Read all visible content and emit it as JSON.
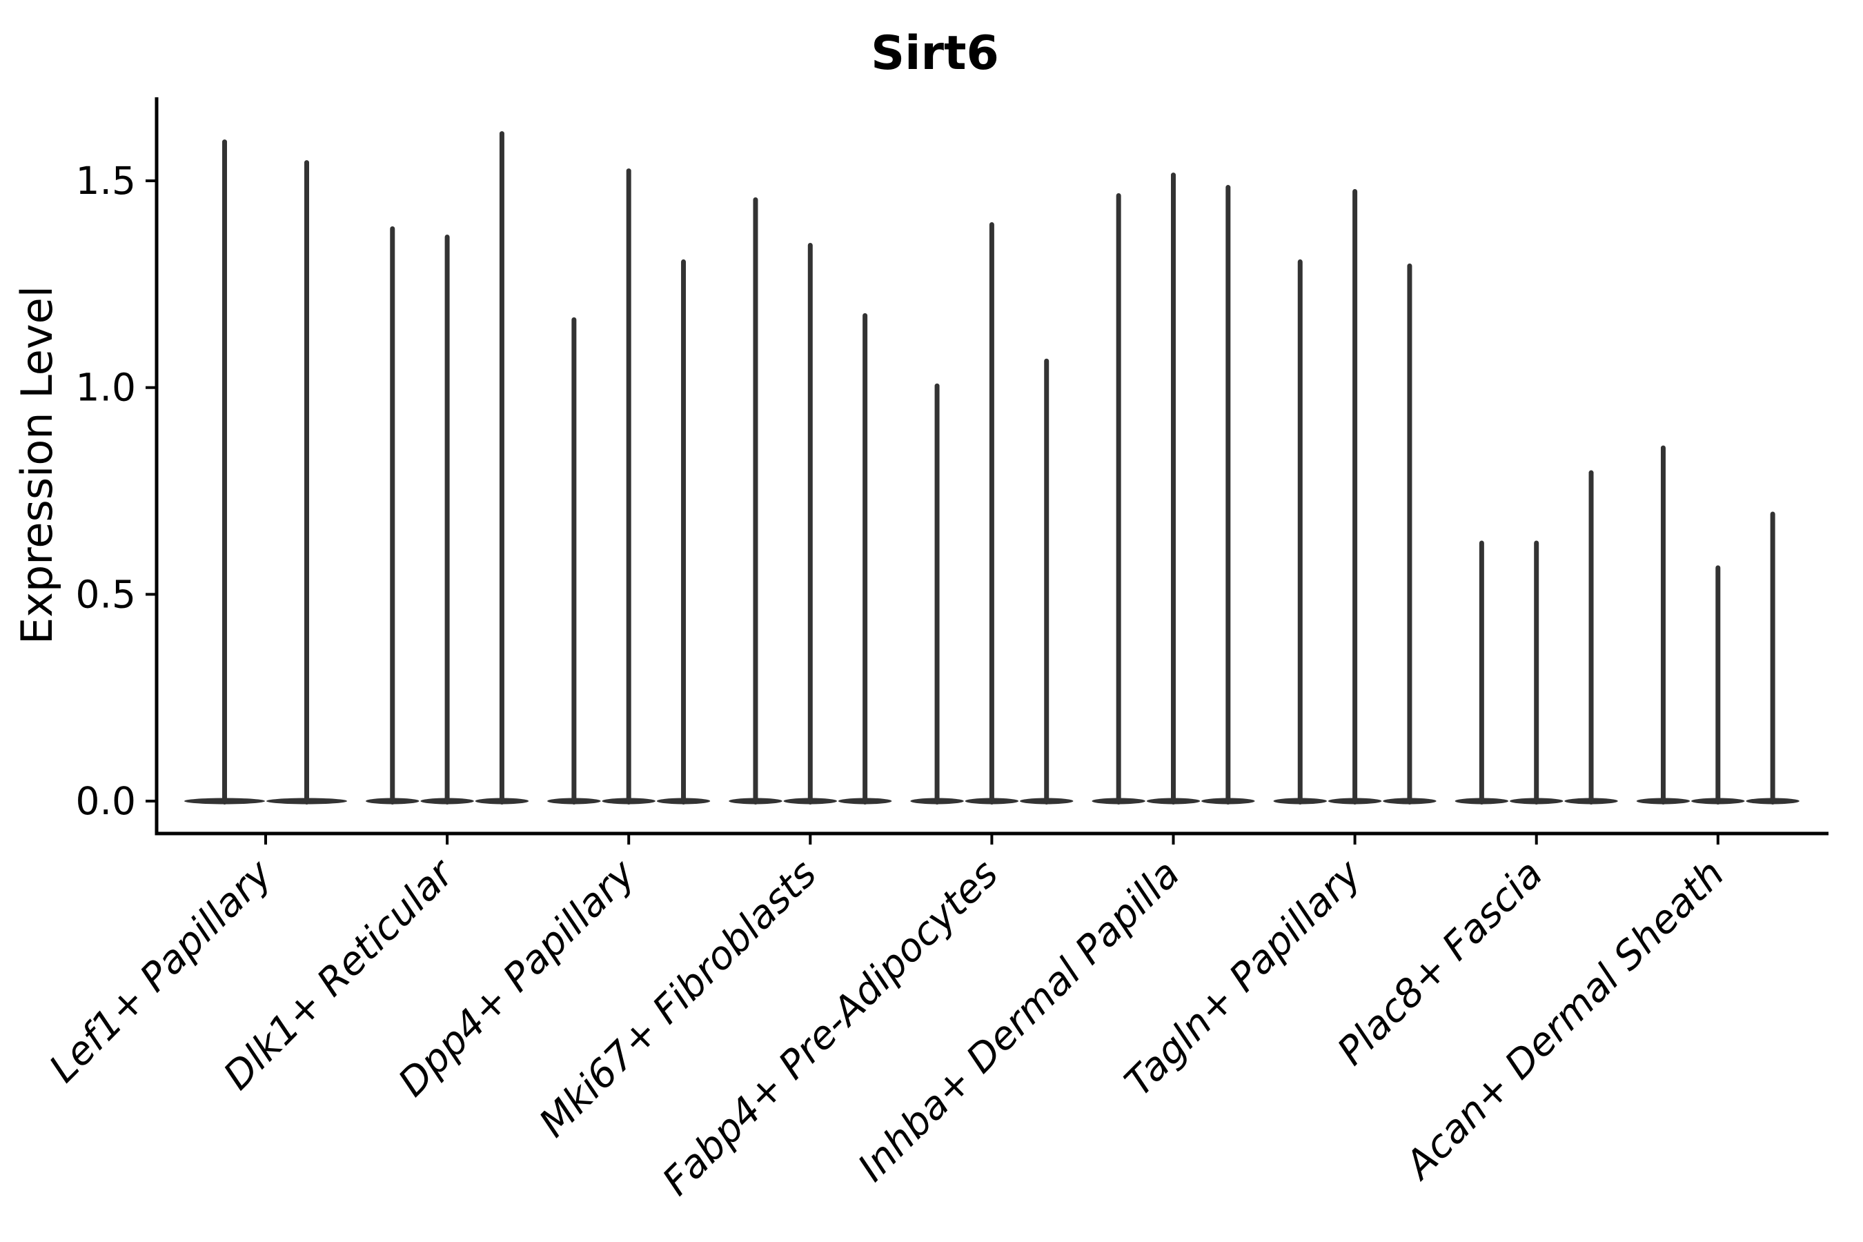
{
  "title": "Sirt6",
  "ylabel": "Expression Level",
  "chart_data": {
    "type": "violin",
    "title": "Sirt6",
    "xlabel": "",
    "ylabel": "Expression Level",
    "ylim": [
      -0.08,
      1.7
    ],
    "yticks": [
      0.0,
      0.5,
      1.0,
      1.5
    ],
    "ytick_labels": [
      "0.0",
      "0.5",
      "1.0",
      "1.5"
    ],
    "grid": false,
    "legend": "none",
    "violin_style": "density bulk at 0 with thin spike rising to max expression",
    "violin_color": "#333333",
    "axis_color": "#000000",
    "text_color": "#000000",
    "categories": [
      "Lef1+ Papillary",
      "Dlk1+ Reticular",
      "Dpp4+ Papillary",
      "Mki67+ Fibroblasts",
      "Fabp4+ Pre-Adipocytes",
      "Inhba+ Dermal Papilla",
      "Tagln+ Papillary",
      "Plac8+ Fascia",
      "Acan+ Dermal Sheath"
    ],
    "groups": [
      {
        "category": "Lef1+ Papillary",
        "violins_per_group": 2,
        "max_values": [
          1.6,
          1.55
        ]
      },
      {
        "category": "Dlk1+ Reticular",
        "violins_per_group": 3,
        "max_values": [
          1.39,
          1.37,
          1.62
        ]
      },
      {
        "category": "Dpp4+ Papillary",
        "violins_per_group": 3,
        "max_values": [
          1.17,
          1.53,
          1.31
        ]
      },
      {
        "category": "Mki67+ Fibroblasts",
        "violins_per_group": 3,
        "max_values": [
          1.46,
          1.35,
          1.18
        ]
      },
      {
        "category": "Fabp4+ Pre-Adipocytes",
        "violins_per_group": 3,
        "max_values": [
          1.01,
          1.4,
          1.07
        ]
      },
      {
        "category": "Inhba+ Dermal Papilla",
        "violins_per_group": 3,
        "max_values": [
          1.47,
          1.52,
          1.49
        ]
      },
      {
        "category": "Tagln+ Papillary",
        "violins_per_group": 3,
        "max_values": [
          1.31,
          1.48,
          1.3
        ]
      },
      {
        "category": "Plac8+ Fascia",
        "violins_per_group": 3,
        "max_values": [
          0.63,
          0.63,
          0.8
        ]
      },
      {
        "category": "Acan+ Dermal Sheath",
        "violins_per_group": 3,
        "max_values": [
          0.86,
          0.57,
          0.7
        ]
      }
    ]
  }
}
